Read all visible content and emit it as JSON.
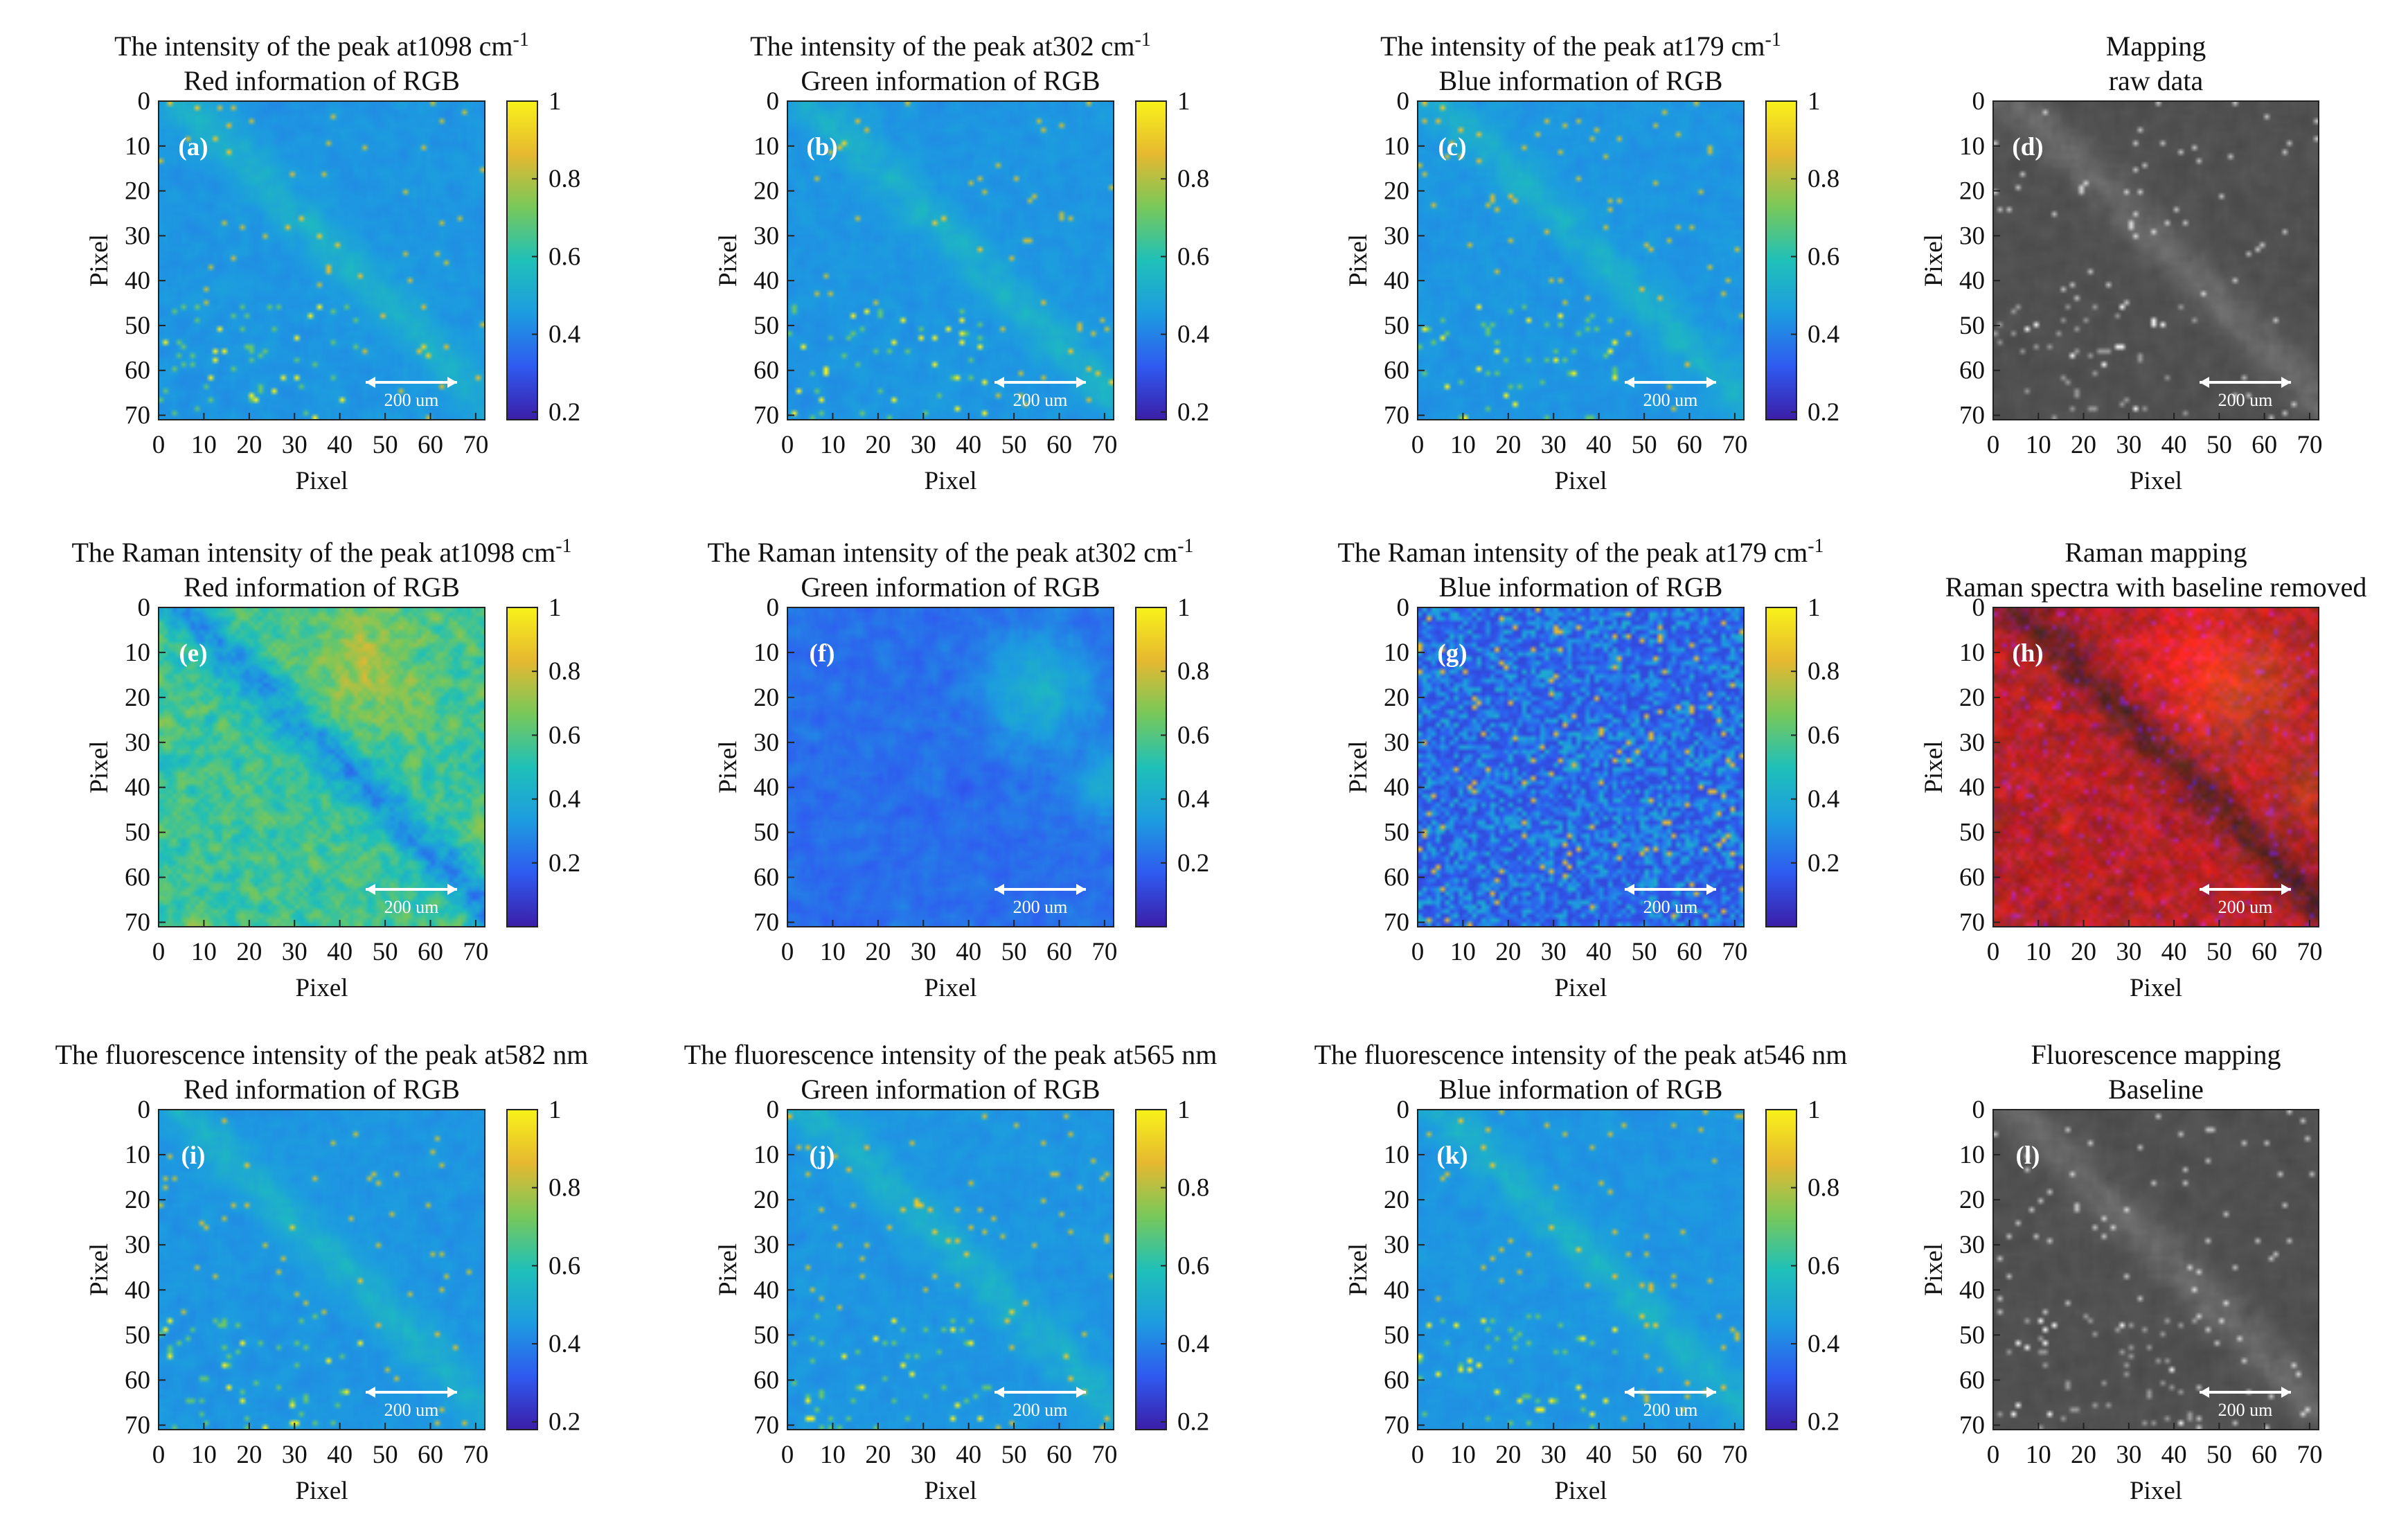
{
  "figure": {
    "axis": {
      "xlabel": "Pixel",
      "ylabel": "Pixel",
      "xlim": [
        0,
        72
      ],
      "ylim": [
        0,
        71
      ],
      "ticks": [
        0,
        10,
        20,
        30,
        40,
        50,
        60,
        70
      ]
    },
    "colorbar": {
      "ticks_a": [
        "1",
        "0.8",
        "0.6",
        "0.4",
        "0.2"
      ],
      "values_a": [
        1,
        0.8,
        0.6,
        0.4,
        0.2
      ],
      "range_a": [
        0.18,
        1
      ],
      "ticks_b": [
        "1",
        "0.8",
        "0.6",
        "0.4",
        "0.2"
      ],
      "values_b": [
        1,
        0.8,
        0.6,
        0.4,
        0.2
      ],
      "range_b": [
        0.0,
        1
      ],
      "colors": [
        "#3b1ea8",
        "#2f5af0",
        "#1d9ce0",
        "#1fc0b8",
        "#78c85a",
        "#e6b830",
        "#f8f21a"
      ]
    },
    "scalebar_label": "200 um",
    "scalebar_color": "#ffffff"
  },
  "chart_data": [
    {
      "type": "heatmap",
      "id": "a",
      "panel_label": "(a)",
      "title1": "The intensity of the peak at1098 cm",
      "title_sup": "-1",
      "title2": "Red information of RGB",
      "colormap": "parula",
      "cbar": "a",
      "style": "raw",
      "seed": 1
    },
    {
      "type": "heatmap",
      "id": "b",
      "panel_label": "(b)",
      "title1": "The intensity of the peak at302 cm",
      "title_sup": "-1",
      "title2": "Green information of RGB",
      "colormap": "parula",
      "cbar": "a",
      "style": "raw",
      "seed": 2
    },
    {
      "type": "heatmap",
      "id": "c",
      "panel_label": "(c)",
      "title1": "The intensity of the peak at179 cm",
      "title_sup": "-1",
      "title2": "Blue information of RGB",
      "colormap": "parula",
      "cbar": "a",
      "style": "raw",
      "seed": 3
    },
    {
      "type": "heatmap",
      "id": "d",
      "panel_label": "(d)",
      "title1": "Mapping",
      "title_sup": "",
      "title2": "raw data",
      "colormap": "gray",
      "cbar": "",
      "style": "raw",
      "seed": 4
    },
    {
      "type": "heatmap",
      "id": "e",
      "panel_label": "(e)",
      "title1": "The Raman intensity of the peak at1098 cm",
      "title_sup": "-1",
      "title2": "Red information of RGB",
      "colormap": "parula",
      "cbar": "b",
      "style": "ramanR",
      "seed": 5
    },
    {
      "type": "heatmap",
      "id": "f",
      "panel_label": "(f)",
      "title1": "The Raman intensity of the peak at302 cm",
      "title_sup": "-1",
      "title2": "Green information of RGB",
      "colormap": "parula",
      "cbar": "b",
      "style": "ramanG",
      "seed": 6
    },
    {
      "type": "heatmap",
      "id": "g",
      "panel_label": "(g)",
      "title1": "The Raman intensity of the peak at179 cm",
      "title_sup": "-1",
      "title2": "Blue information of RGB",
      "colormap": "parula",
      "cbar": "b",
      "style": "ramanB",
      "seed": 7
    },
    {
      "type": "heatmap",
      "id": "h",
      "panel_label": "(h)",
      "title1": "Raman mapping",
      "title_sup": "",
      "title2": "Raman spectra with baseline removed",
      "colormap": "rgb",
      "cbar": "",
      "style": "ramanRGB",
      "seed": 8
    },
    {
      "type": "heatmap",
      "id": "i",
      "panel_label": "(i)",
      "title1": "The fluorescence intensity of the peak at582 nm",
      "title_sup": "",
      "title2": "Red information of RGB",
      "colormap": "parula",
      "cbar": "a",
      "style": "raw",
      "seed": 9
    },
    {
      "type": "heatmap",
      "id": "j",
      "panel_label": "(j)",
      "title1": "The fluorescence intensity of the peak at565 nm",
      "title_sup": "",
      "title2": "Green information of RGB",
      "colormap": "parula",
      "cbar": "a",
      "style": "raw",
      "seed": 10
    },
    {
      "type": "heatmap",
      "id": "k",
      "panel_label": "(k)",
      "title1": "The fluorescence intensity of the peak at546 nm",
      "title_sup": "",
      "title2": "Blue information of RGB",
      "colormap": "parula",
      "cbar": "a",
      "style": "raw",
      "seed": 11
    },
    {
      "type": "heatmap",
      "id": "l",
      "panel_label": "(l)",
      "title1": "Fluorescence mapping",
      "title_sup": "",
      "title2": "Baseline",
      "colormap": "gray",
      "cbar": "",
      "style": "raw",
      "seed": 12
    }
  ]
}
